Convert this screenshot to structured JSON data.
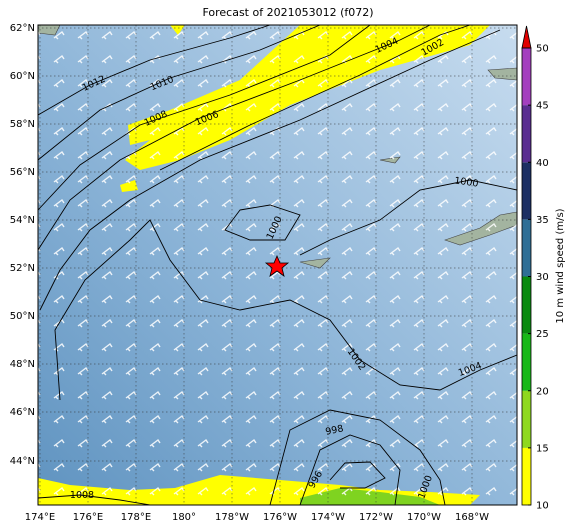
{
  "title": "Forecast of 2021053012 (f072)",
  "lat_labels": [
    "62°N",
    "60°N",
    "58°N",
    "56°N",
    "54°N",
    "52°N",
    "50°N",
    "48°N",
    "46°N",
    "44°N"
  ],
  "lon_labels": [
    "174°E",
    "176°E",
    "178°E",
    "180°",
    "178°W",
    "176°W",
    "174°W",
    "172°W",
    "170°W",
    "168°W"
  ],
  "contour_labels": [
    "1012",
    "1010",
    "1008",
    "1006",
    "1004",
    "1002",
    "1000",
    "1000",
    "1002",
    "1004",
    "998",
    "996",
    "1000",
    "1008"
  ],
  "colorbar": {
    "label": "10 m wind speed (m/s)",
    "ticks": [
      10,
      15,
      20,
      25,
      30,
      35,
      40,
      45,
      50
    ],
    "colors": [
      "#ffff00",
      "#8fd81f",
      "#18b818",
      "#0a8a10",
      "#2f6f96",
      "#1c2f63",
      "#5a2d91",
      "#a43fbf"
    ],
    "extend_color": "#e00000"
  }
}
